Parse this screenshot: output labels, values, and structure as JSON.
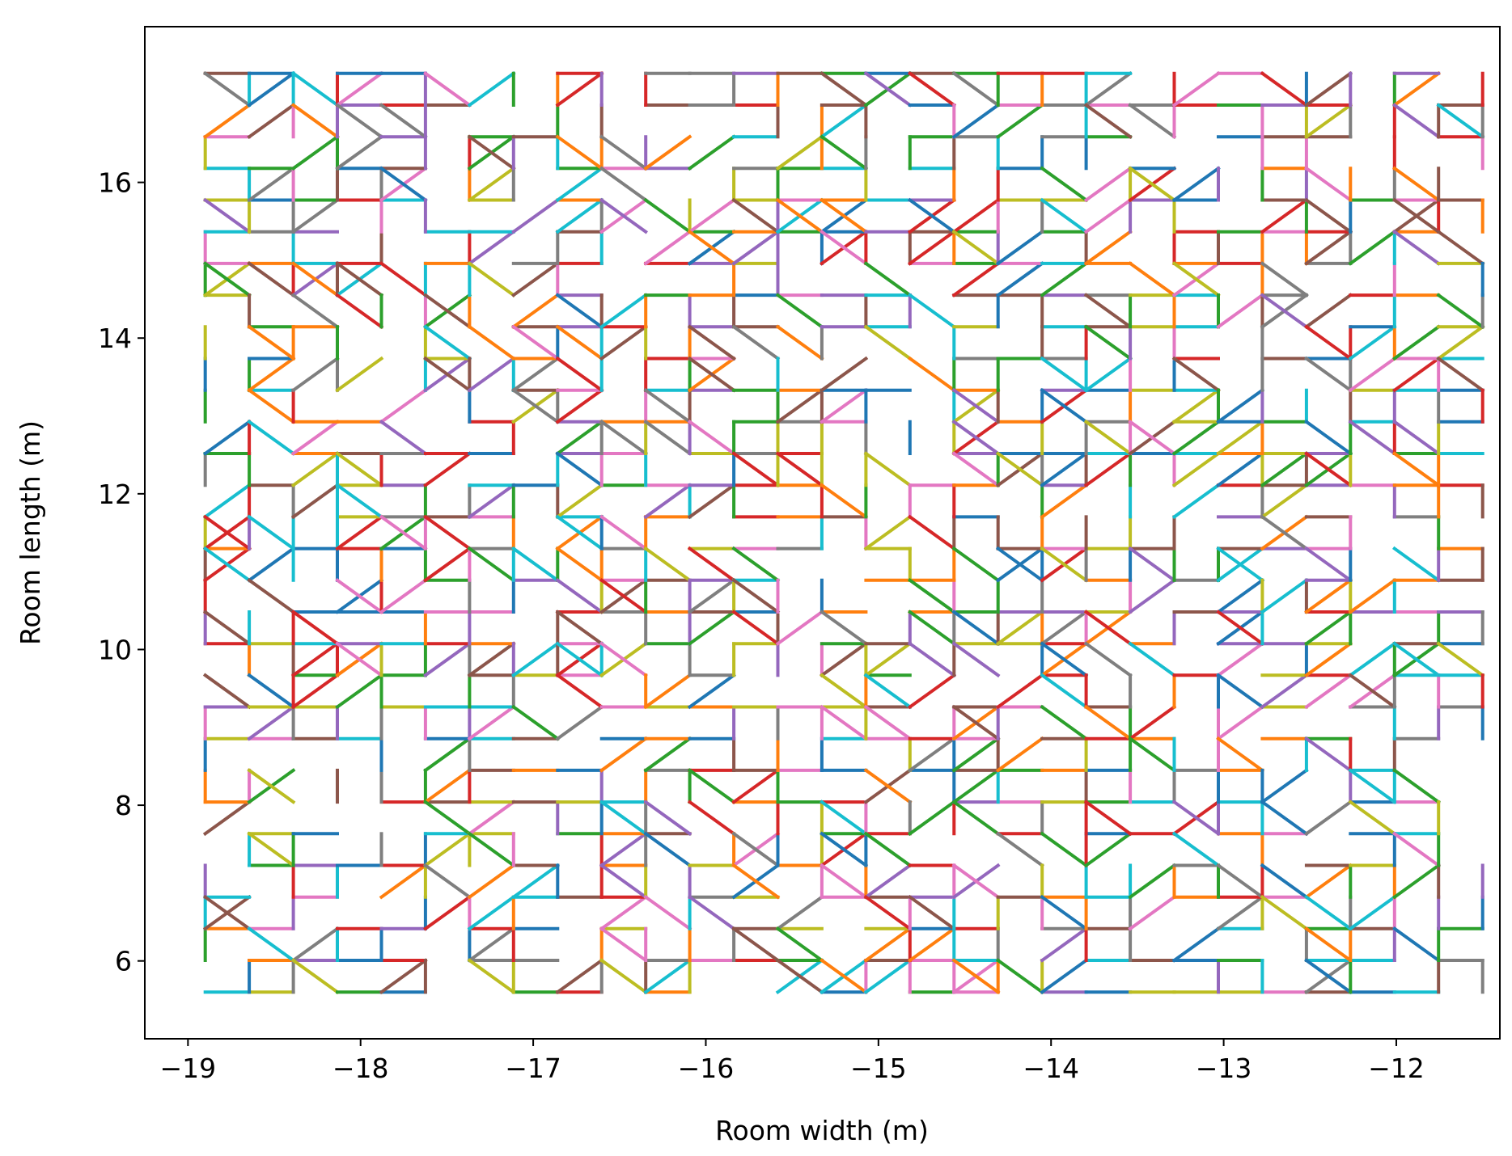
{
  "chart_data": {
    "type": "line",
    "title": "",
    "xlabel": "Room width (m)",
    "ylabel": "Room length (m)",
    "xlim": [
      -19.25,
      -11.4
    ],
    "ylim": [
      5.0,
      18.0
    ],
    "xticks": [
      -19,
      -18,
      -17,
      -16,
      -15,
      -14,
      -13,
      -12
    ],
    "yticks": [
      6,
      8,
      10,
      12,
      14,
      16
    ],
    "xtick_labels": [
      "−19",
      "−18",
      "−17",
      "−16",
      "−15",
      "−14",
      "−13",
      "−12"
    ],
    "ytick_labels": [
      "6",
      "8",
      "10",
      "12",
      "14",
      "16"
    ],
    "grid": false,
    "legend": "none",
    "lattice": {
      "x_min": -18.9,
      "x_max": -11.5,
      "x_nodes": 30,
      "y_min": 5.6,
      "y_max": 17.4,
      "y_nodes": 30
    },
    "palette": [
      "#1f77b4",
      "#ff7f0e",
      "#2ca02c",
      "#d62728",
      "#9467bd",
      "#8c564b",
      "#e377c2",
      "#7f7f7f",
      "#bcbd22",
      "#17becf"
    ],
    "series_count": 10,
    "segment_density": 0.58,
    "seed": 20240611
  }
}
